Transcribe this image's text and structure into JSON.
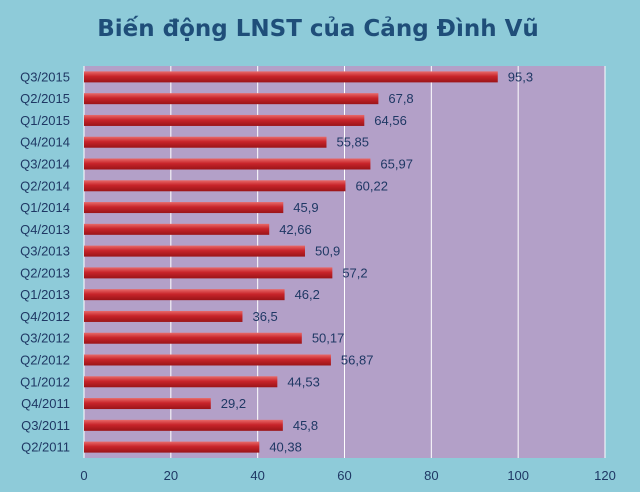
{
  "chart_data": {
    "type": "bar",
    "orientation": "horizontal",
    "title": "Biến động LNST của Cảng Đình Vũ",
    "categories": [
      "Q3/2015",
      "Q2/2015",
      "Q1/2015",
      "Q4/2014",
      "Q3/2014",
      "Q2/2014",
      "Q1/2014",
      "Q4/2013",
      "Q3/2013",
      "Q2/2013",
      "Q1/2013",
      "Q4/2012",
      "Q3/2012",
      "Q2/2012",
      "Q1/2012",
      "Q4/2011",
      "Q3/2011",
      "Q2/2011"
    ],
    "values": [
      95.3,
      67.8,
      64.56,
      55.85,
      65.97,
      60.22,
      45.9,
      42.66,
      50.9,
      57.2,
      46.2,
      36.5,
      50.17,
      56.87,
      44.53,
      29.2,
      45.8,
      40.38
    ],
    "value_labels": [
      "95,3",
      "67,8",
      "64,56",
      "55,85",
      "65,97",
      "60,22",
      "45,9",
      "42,66",
      "50,9",
      "57,2",
      "46,2",
      "36,5",
      "50,17",
      "56,87",
      "44,53",
      "29,2",
      "45,8",
      "40,38"
    ],
    "xlim": [
      0,
      120
    ],
    "xticks": [
      0,
      20,
      40,
      60,
      80,
      100,
      120
    ],
    "grid": true,
    "legend": "none",
    "colors": {
      "background": "#8ecbd9",
      "plot_area": "#b3a0c8",
      "bar": "#c8242a",
      "bar_highlight": "#e86a6a",
      "title": "#1f4e79",
      "label": "#1f3864"
    }
  }
}
